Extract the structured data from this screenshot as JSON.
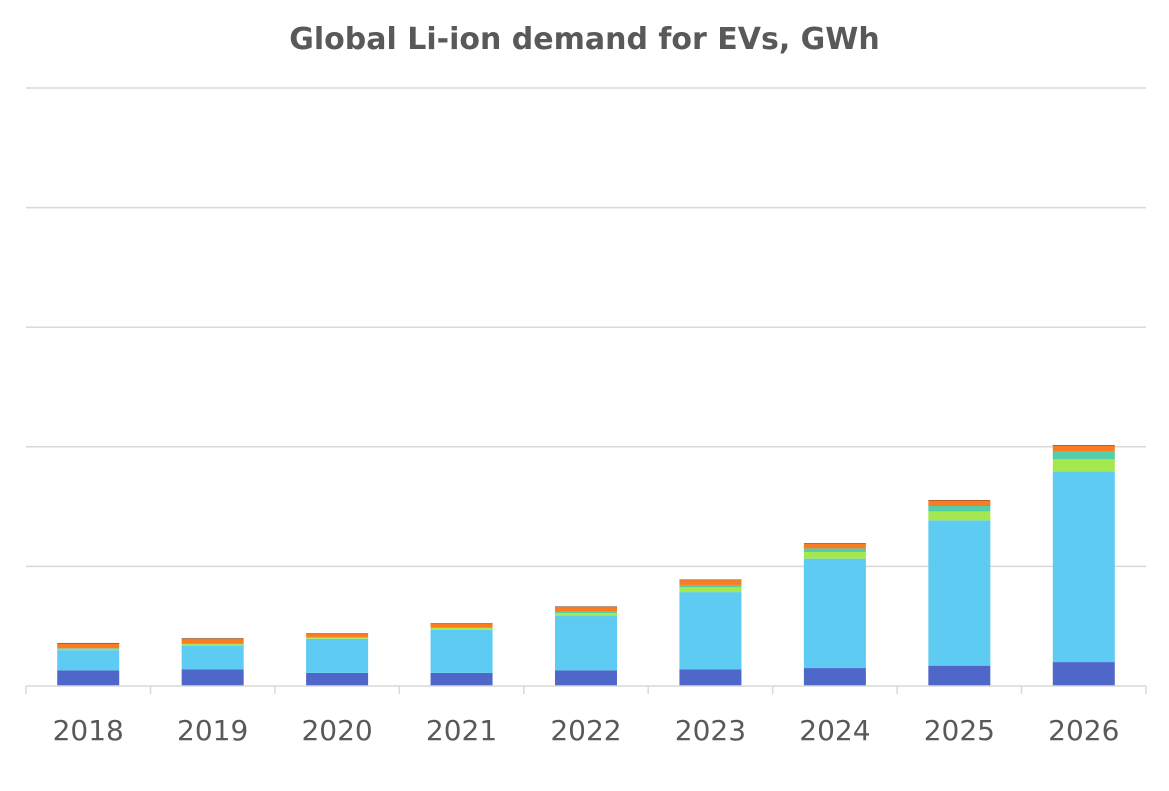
{
  "chart_data": {
    "type": "bar",
    "stacked": true,
    "title": "Global Li-ion demand for EVs, GWh",
    "xlabel": "",
    "ylabel": "",
    "ylim": [
      0,
      1000
    ],
    "y_tick_labels_shown": false,
    "grid": true,
    "legend": "none",
    "categories": [
      "2018",
      "2019",
      "2020",
      "2021",
      "2022",
      "2023",
      "2024",
      "2025",
      "2026"
    ],
    "series": [
      {
        "color": "#4F67C9",
        "values": [
          26,
          28,
          22,
          22,
          26,
          28,
          30,
          34,
          40
        ]
      },
      {
        "color": "#5ECBF2",
        "values": [
          34,
          40,
          57,
          72,
          91,
          129,
          183,
          243,
          319
        ]
      },
      {
        "color": "#A5E84E",
        "values": [
          2,
          2,
          2,
          3,
          5,
          8,
          11,
          15,
          20
        ]
      },
      {
        "color": "#52CFA9",
        "values": [
          1,
          1,
          1,
          1,
          2,
          4,
          6,
          9,
          13
        ]
      },
      {
        "color": "#FB7C20",
        "values": [
          8,
          8,
          5,
          6,
          8,
          8,
          8,
          9,
          10
        ]
      },
      {
        "color": "#7A3E1A",
        "values": [
          1,
          1,
          1,
          1,
          1,
          1,
          1,
          1,
          1
        ]
      }
    ]
  }
}
